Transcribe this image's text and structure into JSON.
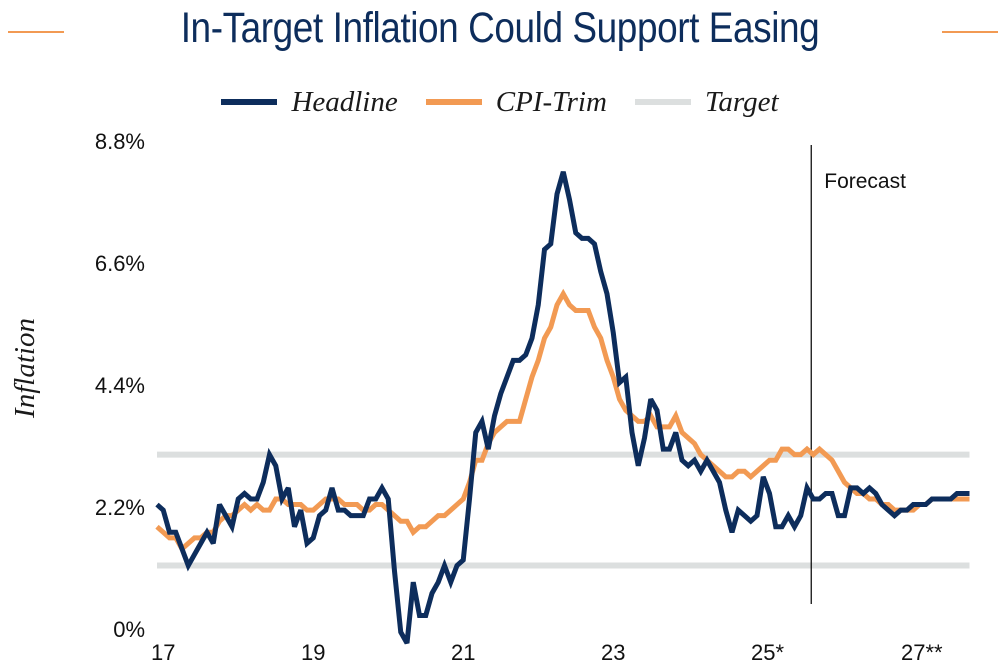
{
  "title": "In-Target Inflation Could Support Easing",
  "legend": [
    {
      "label": "Headline",
      "color": "#0d2d5c"
    },
    {
      "label": "CPI-Trim",
      "color": "#f29a53"
    },
    {
      "label": "Target",
      "color": "#dcdfdf"
    }
  ],
  "chart_data": {
    "type": "line",
    "title": "In-Target Inflation Could Support Easing",
    "xlabel": "",
    "ylabel": "Inflation",
    "ylim": [
      0,
      8.8
    ],
    "yticks": [
      {
        "value": 8.8,
        "label": "8.8%"
      },
      {
        "value": 6.6,
        "label": "6.6%"
      },
      {
        "value": 4.4,
        "label": "4.4%"
      },
      {
        "value": 2.2,
        "label": "2.2%"
      },
      {
        "value": 0,
        "label": "0%"
      }
    ],
    "x_start": "2017-01",
    "x_frequency": "monthly",
    "xticks": [
      {
        "month_index": 0,
        "label": "17"
      },
      {
        "month_index": 24,
        "label": "19"
      },
      {
        "month_index": 48,
        "label": "21"
      },
      {
        "month_index": 72,
        "label": "23"
      },
      {
        "month_index": 96,
        "label": "25*"
      },
      {
        "month_index": 120,
        "label": "27**"
      }
    ],
    "grid": false,
    "legend_position": "top-center",
    "target_band": {
      "lower": 1,
      "upper": 3,
      "color": "#dcdfdf"
    },
    "forecast": {
      "label": "Forecast",
      "start_month_index": 105
    },
    "series": [
      {
        "name": "Headline",
        "color": "#0d2d5c",
        "values": [
          2.1,
          2.0,
          1.6,
          1.6,
          1.3,
          1.0,
          1.2,
          1.4,
          1.6,
          1.4,
          2.1,
          1.9,
          1.7,
          2.2,
          2.3,
          2.2,
          2.2,
          2.5,
          3.0,
          2.8,
          2.2,
          2.4,
          1.7,
          2.0,
          1.4,
          1.5,
          1.9,
          2.0,
          2.4,
          2.0,
          2.0,
          1.9,
          1.9,
          1.9,
          2.2,
          2.2,
          2.4,
          2.2,
          0.9,
          -0.2,
          -0.4,
          0.7,
          0.1,
          0.1,
          0.5,
          0.7,
          1.0,
          0.7,
          1.0,
          1.1,
          2.2,
          3.4,
          3.6,
          3.1,
          3.7,
          4.1,
          4.4,
          4.7,
          4.7,
          4.8,
          5.1,
          5.7,
          6.7,
          6.8,
          7.7,
          8.1,
          7.6,
          7.0,
          6.9,
          6.9,
          6.8,
          6.3,
          5.9,
          5.2,
          4.3,
          4.4,
          3.4,
          2.8,
          3.3,
          4.0,
          3.8,
          3.1,
          3.1,
          3.4,
          2.9,
          2.8,
          2.9,
          2.7,
          2.9,
          2.7,
          2.5,
          2.0,
          1.6,
          2.0,
          1.9,
          1.8,
          1.9,
          2.6,
          2.3,
          1.7,
          1.7,
          1.9,
          1.7,
          1.9,
          2.4,
          2.2,
          2.2,
          2.3,
          2.3,
          1.9,
          1.9,
          2.4,
          2.4,
          2.3,
          2.4,
          2.3,
          2.1,
          2.0,
          1.9,
          2.0,
          2.0,
          2.1,
          2.1,
          2.1,
          2.2,
          2.2,
          2.2,
          2.2,
          2.3,
          2.3,
          2.3
        ]
      },
      {
        "name": "CPI-Trim",
        "color": "#f29a53",
        "values": [
          1.7,
          1.6,
          1.5,
          1.5,
          1.3,
          1.4,
          1.5,
          1.5,
          1.6,
          1.6,
          1.8,
          1.9,
          1.9,
          2.0,
          2.1,
          2.0,
          2.1,
          2.0,
          2.0,
          2.2,
          2.2,
          2.1,
          2.1,
          2.1,
          2.0,
          2.0,
          2.1,
          2.2,
          2.2,
          2.2,
          2.1,
          2.1,
          2.1,
          2.0,
          2.0,
          2.1,
          2.1,
          2.0,
          1.9,
          1.8,
          1.8,
          1.6,
          1.7,
          1.7,
          1.8,
          1.9,
          1.9,
          2.0,
          2.1,
          2.2,
          2.5,
          2.9,
          2.9,
          3.2,
          3.4,
          3.5,
          3.6,
          3.6,
          3.6,
          4.0,
          4.4,
          4.7,
          5.1,
          5.3,
          5.7,
          5.9,
          5.7,
          5.6,
          5.6,
          5.6,
          5.3,
          5.1,
          4.7,
          4.4,
          4.0,
          3.8,
          3.7,
          3.6,
          3.6,
          3.7,
          3.5,
          3.5,
          3.5,
          3.7,
          3.4,
          3.3,
          3.2,
          3.0,
          2.9,
          2.8,
          2.7,
          2.6,
          2.6,
          2.7,
          2.7,
          2.6,
          2.7,
          2.8,
          2.9,
          2.9,
          3.1,
          3.1,
          3.0,
          3.0,
          3.1,
          3.0,
          3.1,
          3.0,
          2.9,
          2.7,
          2.5,
          2.4,
          2.3,
          2.3,
          2.2,
          2.2,
          2.1,
          2.1,
          2.0,
          2.0,
          2.0,
          2.0,
          2.1,
          2.1,
          2.2,
          2.2,
          2.2,
          2.2,
          2.2,
          2.2,
          2.2
        ]
      }
    ]
  }
}
